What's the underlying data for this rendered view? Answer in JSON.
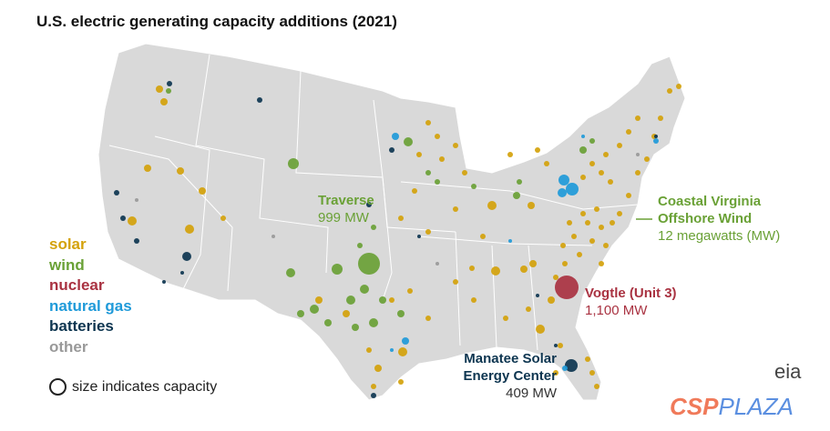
{
  "title": "U.S. electric generating capacity additions (2021)",
  "legend": {
    "items": [
      {
        "label": "solar",
        "color": "#d4a20b"
      },
      {
        "label": "wind",
        "color": "#6aa136"
      },
      {
        "label": "nuclear",
        "color": "#a93241"
      },
      {
        "label": "natural gas",
        "color": "#1f9ad9"
      },
      {
        "label": "batteries",
        "color": "#0d3550"
      },
      {
        "label": "other",
        "color": "#999999"
      }
    ],
    "size_note": "size indicates capacity"
  },
  "annotations": {
    "traverse": {
      "name": "Traverse",
      "value": "999 MW"
    },
    "coastal_virginia": {
      "name_line1": "Coastal Virginia",
      "name_line2": "Offshore Wind",
      "value": "12 megawatts (MW)"
    },
    "vogtle": {
      "name": "Vogtle (Unit 3)",
      "value": "1,100 MW"
    },
    "manatee": {
      "name_line1": "Manatee Solar",
      "name_line2": "Energy Center",
      "value": "409 MW"
    }
  },
  "logo": "eia",
  "watermark": {
    "part1": "CSP",
    "part2": "PLAZA"
  },
  "map_colors": {
    "land": "#d9d9d9",
    "borders": "#ffffff"
  }
}
